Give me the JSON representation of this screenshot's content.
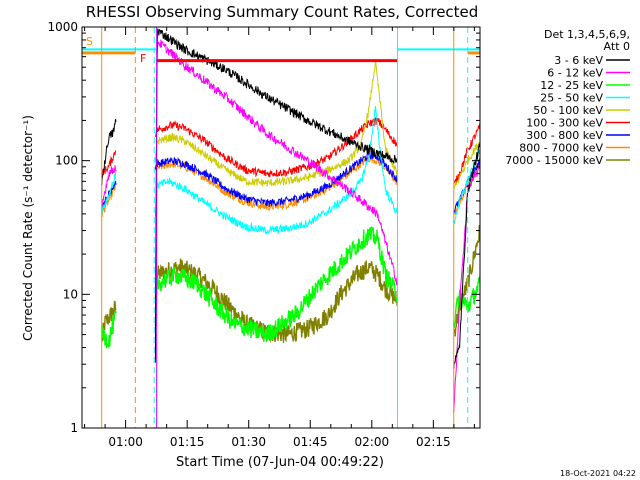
{
  "chart_data": {
    "type": "line",
    "title": "RHESSI Observing Summary Count Rates, Corrected",
    "xlabel": "Start Time (07-Jun-04 00:49:22)",
    "ylabel": "Corrected Count Rate (s⁻¹ detector⁻¹)",
    "x_unit": "minutes after 00:49:22",
    "xlim": [
      0,
      97
    ],
    "ylim": [
      1,
      1000
    ],
    "y_scale": "log",
    "xticks": [
      {
        "t": 10.63,
        "label": "01:00"
      },
      {
        "t": 25.63,
        "label": "01:15"
      },
      {
        "t": 40.63,
        "label": "01:30"
      },
      {
        "t": 55.63,
        "label": "01:45"
      },
      {
        "t": 70.63,
        "label": "02:00"
      },
      {
        "t": 85.63,
        "label": "02:15"
      }
    ],
    "yticks": [
      {
        "v": 1,
        "label": "1"
      },
      {
        "v": 10,
        "label": "10"
      },
      {
        "v": 100,
        "label": "100"
      },
      {
        "v": 1000,
        "label": "1000"
      }
    ],
    "legend_header": [
      "Det 1,3,4,5,6,9,",
      "Att 0"
    ],
    "legend_placement": "right",
    "footer_date": "18-Oct-2021 04:22",
    "segments": [
      [
        4.8,
        13.0
      ],
      [
        17.9,
        76.9
      ],
      [
        90.6,
        97
      ]
    ],
    "series": [
      {
        "name": "3 - 6 keV",
        "color": "#000000",
        "points": [
          [
            4.8,
            70
          ],
          [
            5.5,
            95
          ],
          [
            6.5,
            150
          ],
          [
            7.5,
            160
          ],
          [
            8.3,
            200
          ],
          [
            17.9,
            3.0
          ],
          [
            18.3,
            950
          ],
          [
            25,
            680
          ],
          [
            35,
            480
          ],
          [
            45,
            300
          ],
          [
            55,
            200
          ],
          [
            65,
            140
          ],
          [
            70,
            120
          ],
          [
            76.9,
            100
          ],
          [
            77.2,
            4.5
          ],
          [
            80,
            3.3
          ],
          [
            90.6,
            3.0
          ],
          [
            92,
            4.0
          ],
          [
            94,
            60
          ],
          [
            97,
            130
          ]
        ]
      },
      {
        "name": "6 - 12 keV",
        "color": "#ff00ff",
        "points": [
          [
            4.8,
            45
          ],
          [
            6.5,
            80
          ],
          [
            8.3,
            90
          ],
          [
            17.9,
            3.5
          ],
          [
            18.3,
            790
          ],
          [
            25,
            520
          ],
          [
            35,
            300
          ],
          [
            45,
            160
          ],
          [
            55,
            100
          ],
          [
            65,
            60
          ],
          [
            72,
            40
          ],
          [
            76.9,
            12
          ],
          [
            77.2,
            8
          ],
          [
            80,
            6
          ],
          [
            90.6,
            1.3
          ],
          [
            92,
            8
          ],
          [
            94,
            60
          ],
          [
            97,
            90
          ]
        ]
      },
      {
        "name": "12 - 25 keV",
        "color": "#00ff00",
        "points": [
          [
            4.8,
            5
          ],
          [
            6.5,
            4.5
          ],
          [
            8.3,
            7
          ],
          [
            17.9,
            5
          ],
          [
            18.3,
            12
          ],
          [
            23,
            14
          ],
          [
            28,
            12
          ],
          [
            33,
            8
          ],
          [
            37,
            6
          ],
          [
            45,
            5
          ],
          [
            52,
            7
          ],
          [
            58,
            12
          ],
          [
            62,
            16
          ],
          [
            65,
            20
          ],
          [
            68,
            25
          ],
          [
            70,
            28
          ],
          [
            72,
            26
          ],
          [
            74,
            14
          ],
          [
            76.9,
            10
          ],
          [
            80,
            5
          ],
          [
            86,
            4
          ],
          [
            90.6,
            6
          ],
          [
            92,
            10
          ],
          [
            94,
            8
          ],
          [
            97,
            12
          ]
        ]
      },
      {
        "name": "25 - 50 keV",
        "color": "#00ffff",
        "points": [
          [
            4.8,
            42
          ],
          [
            6.5,
            55
          ],
          [
            8.3,
            80
          ],
          [
            17.9,
            40
          ],
          [
            18.3,
            65
          ],
          [
            21,
            70
          ],
          [
            25,
            62
          ],
          [
            30,
            48
          ],
          [
            35,
            38
          ],
          [
            40,
            32
          ],
          [
            45,
            30
          ],
          [
            50,
            31
          ],
          [
            55,
            34
          ],
          [
            60,
            42
          ],
          [
            65,
            55
          ],
          [
            68,
            70
          ],
          [
            70,
            110
          ],
          [
            71.5,
            250
          ],
          [
            72.5,
            130
          ],
          [
            74,
            60
          ],
          [
            76.9,
            40
          ],
          [
            80,
            34
          ],
          [
            85,
            30
          ],
          [
            88,
            30
          ],
          [
            90.6,
            34
          ],
          [
            92,
            50
          ],
          [
            94,
            70
          ],
          [
            97,
            120
          ]
        ]
      },
      {
        "name": "50 - 100 keV",
        "color": "#cccc00",
        "points": [
          [
            17.9,
            95
          ],
          [
            18.3,
            140
          ],
          [
            22,
            150
          ],
          [
            25,
            140
          ],
          [
            30,
            110
          ],
          [
            35,
            85
          ],
          [
            40,
            70
          ],
          [
            45,
            68
          ],
          [
            50,
            70
          ],
          [
            55,
            75
          ],
          [
            60,
            85
          ],
          [
            65,
            100
          ],
          [
            68,
            130
          ],
          [
            70,
            250
          ],
          [
            71.5,
            550
          ],
          [
            72.5,
            300
          ],
          [
            74,
            120
          ],
          [
            76.9,
            80
          ],
          [
            80,
            70
          ],
          [
            85,
            60
          ],
          [
            88,
            55
          ],
          [
            90.6,
            60
          ],
          [
            92,
            75
          ],
          [
            94,
            100
          ],
          [
            97,
            140
          ]
        ]
      },
      {
        "name": "100 - 300 keV",
        "color": "#ff0000",
        "points": [
          [
            4.8,
            80
          ],
          [
            6.5,
            90
          ],
          [
            8.3,
            120
          ],
          [
            17.9,
            160
          ],
          [
            18.3,
            170
          ],
          [
            22,
            185
          ],
          [
            25,
            175
          ],
          [
            30,
            140
          ],
          [
            35,
            105
          ],
          [
            40,
            85
          ],
          [
            45,
            80
          ],
          [
            50,
            82
          ],
          [
            55,
            90
          ],
          [
            60,
            105
          ],
          [
            65,
            140
          ],
          [
            68,
            170
          ],
          [
            70,
            190
          ],
          [
            72,
            200
          ],
          [
            74,
            170
          ],
          [
            76.9,
            130
          ],
          [
            80,
            100
          ],
          [
            85,
            75
          ],
          [
            88,
            65
          ],
          [
            90.6,
            65
          ],
          [
            92,
            80
          ],
          [
            94,
            120
          ],
          [
            97,
            180
          ]
        ]
      },
      {
        "name": "300 - 800 keV",
        "color": "#0000ff",
        "points": [
          [
            4.8,
            45
          ],
          [
            6.5,
            55
          ],
          [
            8.3,
            70
          ],
          [
            17.9,
            90
          ],
          [
            18.3,
            95
          ],
          [
            22,
            100
          ],
          [
            25,
            95
          ],
          [
            30,
            80
          ],
          [
            35,
            62
          ],
          [
            40,
            52
          ],
          [
            45,
            48
          ],
          [
            50,
            50
          ],
          [
            55,
            55
          ],
          [
            60,
            65
          ],
          [
            65,
            85
          ],
          [
            68,
            100
          ],
          [
            70,
            110
          ],
          [
            72,
            108
          ],
          [
            74,
            92
          ],
          [
            76.9,
            72
          ],
          [
            80,
            58
          ],
          [
            85,
            48
          ],
          [
            88,
            42
          ],
          [
            90.6,
            42
          ],
          [
            92,
            50
          ],
          [
            94,
            70
          ],
          [
            97,
            100
          ]
        ]
      },
      {
        "name": "800 - 7000 keV",
        "color": "#ff8c00",
        "points": [
          [
            4.8,
            40
          ],
          [
            6.5,
            50
          ],
          [
            8.3,
            65
          ],
          [
            17.9,
            85
          ],
          [
            18.3,
            88
          ],
          [
            22,
            95
          ],
          [
            25,
            90
          ],
          [
            30,
            75
          ],
          [
            35,
            58
          ],
          [
            40,
            49
          ],
          [
            45,
            45
          ],
          [
            50,
            47
          ],
          [
            55,
            52
          ],
          [
            60,
            62
          ],
          [
            65,
            80
          ],
          [
            68,
            95
          ],
          [
            70,
            104
          ],
          [
            72,
            100
          ],
          [
            74,
            88
          ],
          [
            76.9,
            68
          ],
          [
            80,
            54
          ],
          [
            85,
            45
          ],
          [
            88,
            40
          ],
          [
            90.6,
            40
          ],
          [
            92,
            47
          ],
          [
            94,
            66
          ],
          [
            97,
            95
          ]
        ]
      },
      {
        "name": "7000 - 15000 keV",
        "color": "#808000",
        "points": [
          [
            4.8,
            4.5
          ],
          [
            5.5,
            6
          ],
          [
            7,
            7
          ],
          [
            8.3,
            8
          ],
          [
            17.9,
            9
          ],
          [
            18.3,
            14
          ],
          [
            21,
            15
          ],
          [
            24,
            16
          ],
          [
            28,
            14
          ],
          [
            32,
            11
          ],
          [
            36,
            8
          ],
          [
            40,
            6
          ],
          [
            45,
            5.2
          ],
          [
            50,
            5
          ],
          [
            55,
            5.5
          ],
          [
            60,
            7
          ],
          [
            63,
            10
          ],
          [
            67,
            14
          ],
          [
            70,
            16
          ],
          [
            72,
            14
          ],
          [
            74,
            11
          ],
          [
            76.9,
            9
          ],
          [
            80,
            7
          ],
          [
            85,
            5.2
          ],
          [
            88,
            4.5
          ],
          [
            90.6,
            5
          ],
          [
            92,
            8
          ],
          [
            94,
            12
          ],
          [
            97,
            30
          ]
        ]
      }
    ],
    "annotations": [
      {
        "text": "S",
        "color": "#ff8c00"
      },
      {
        "text": "F",
        "color": "#ff0000"
      }
    ],
    "spans": [
      {
        "name": "S",
        "color": "#ff8c00",
        "x0": 0,
        "x1": 13.0,
        "y": 640
      },
      {
        "name": "F",
        "color": "#ff0000",
        "x0": 18.3,
        "x1": 76.9,
        "y": 560
      },
      {
        "name": "S-right",
        "color": "#ff8c00",
        "x0": 94.0,
        "x1": 97,
        "y": 640
      }
    ],
    "cyan_spans": [
      {
        "x0": 0,
        "x1": 18.0,
        "y": 680
      },
      {
        "x0": 76.9,
        "x1": 97,
        "y": 680
      }
    ],
    "vlines": [
      {
        "t": 4.8,
        "color": "#ff8c00",
        "dash": false
      },
      {
        "t": 13.0,
        "color": "#ff8c00",
        "dash": true
      },
      {
        "t": 17.6,
        "color": "#00ffff",
        "dash": true
      },
      {
        "t": 18.2,
        "color": "#cc00ff",
        "dash": false
      },
      {
        "t": 76.9,
        "color": "#00ffff",
        "dash": false
      },
      {
        "t": 90.6,
        "color": "#ff8c00",
        "dash": false
      },
      {
        "t": 94.0,
        "color": "#00ffff",
        "dash": true
      }
    ]
  }
}
